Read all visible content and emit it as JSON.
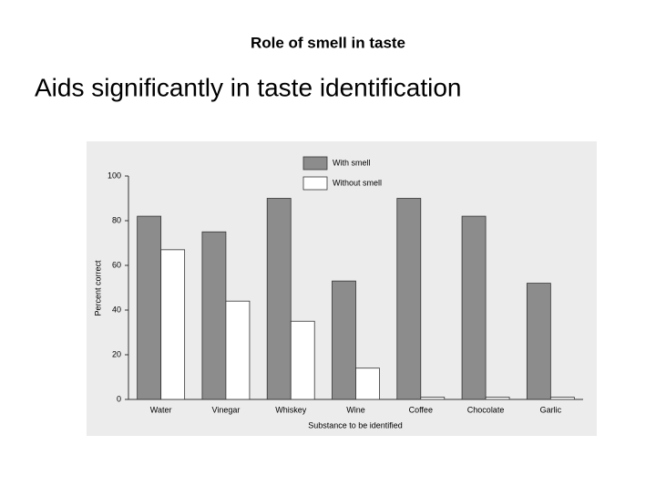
{
  "slide": {
    "title": "Role of smell in taste",
    "subtitle": "Aids significantly in taste identification"
  },
  "chart_data": {
    "type": "bar",
    "x_label": "Substance to be identified",
    "y_label": "Percent correct",
    "categories": [
      "Water",
      "Vinegar",
      "Whiskey",
      "Wine",
      "Coffee",
      "Chocolate",
      "Garlic"
    ],
    "series": [
      {
        "name": "With smell",
        "color": "#8c8c8c",
        "values": [
          82,
          75,
          90,
          53,
          90,
          82,
          52
        ]
      },
      {
        "name": "Without smell",
        "color": "#ffffff",
        "values": [
          67,
          44,
          35,
          14,
          1,
          1,
          1
        ]
      }
    ],
    "ylim": [
      0,
      100
    ],
    "yticks": [
      0,
      20,
      40,
      60,
      80,
      100
    ],
    "grid": false,
    "legend": "top"
  }
}
